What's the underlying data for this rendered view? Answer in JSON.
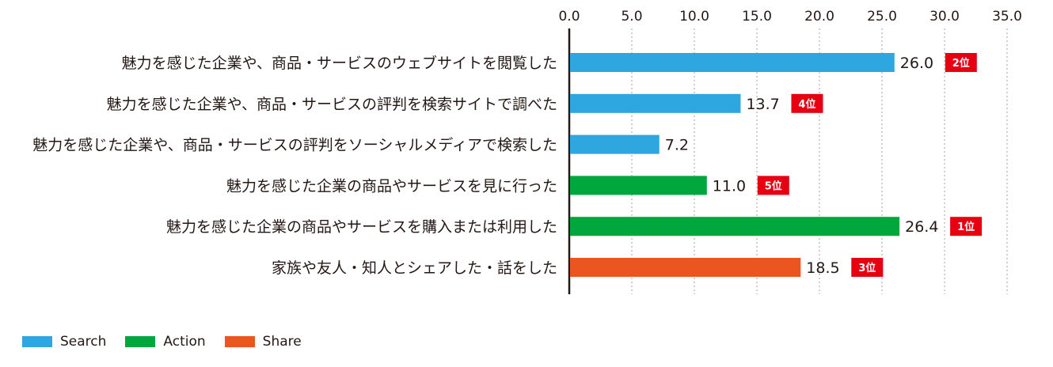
{
  "chart_data": {
    "type": "bar",
    "orientation": "horizontal",
    "categories": [
      "魅力を感じた企業や、商品・サービスのウェブサイトを閲覧した",
      "魅力を感じた企業や、商品・サービスの評判を検索サイトで調べた",
      "魅力を感じた企業や、商品・サービスの評判をソーシャルメディアで検索した",
      "魅力を感じた企業の商品やサービスを見に行った",
      "魅力を感じた企業の商品やサービスを購入または利用した",
      "家族や友人・知人とシェアした・話をした"
    ],
    "values": [
      26.0,
      13.7,
      7.2,
      11.0,
      26.4,
      18.5
    ],
    "value_labels": [
      "26.0",
      "13.7",
      "7.2",
      "11.0",
      "26.4",
      "18.5"
    ],
    "groups": [
      "Search",
      "Search",
      "Search",
      "Action",
      "Action",
      "Share"
    ],
    "ranks": [
      "2位",
      "4位",
      "",
      "5位",
      "1位",
      "3位"
    ],
    "xlim": [
      0,
      35
    ],
    "x_ticks": [
      "0.0",
      "5.0",
      "10.0",
      "15.0",
      "20.0",
      "25.0",
      "30.0",
      "35.0"
    ],
    "x_axis_position": "top",
    "grid": "vertical dotted",
    "legend": [
      {
        "name": "Search",
        "color": "#2ea7e0"
      },
      {
        "name": "Action",
        "color": "#00a73c"
      },
      {
        "name": "Share",
        "color": "#ea5520"
      }
    ],
    "legend_position": "bottom-left",
    "rank_badge_color": "#e60012",
    "title": "",
    "xlabel": "",
    "ylabel": ""
  }
}
